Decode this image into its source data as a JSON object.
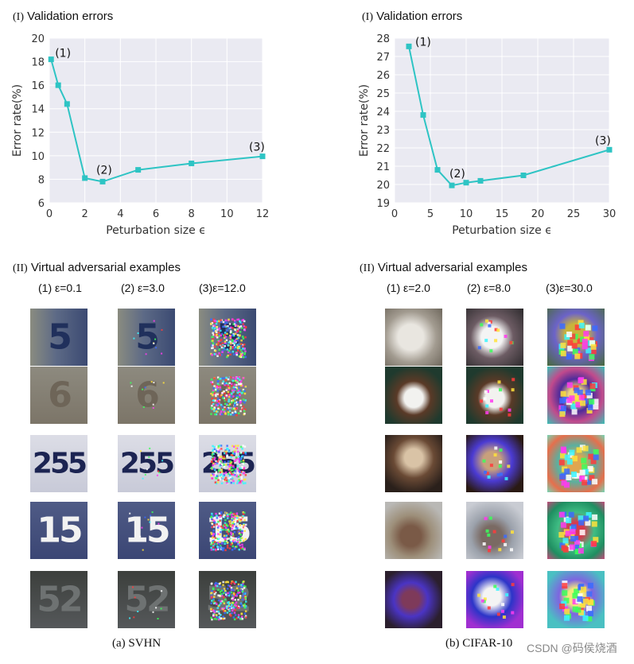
{
  "left": {
    "chart_title_roman": "(I)",
    "chart_title_text": "Validation errors",
    "examples_title_roman": "(II)",
    "examples_title_text": "Virtual adversarial examples",
    "columns": [
      "(1) ε=0.1",
      "(2) ε=3.0",
      "(3)ε=12.0"
    ],
    "caption": "(a) SVHN",
    "row_glyphs": [
      "5",
      "6",
      "255",
      "15",
      "52"
    ]
  },
  "right": {
    "chart_title_roman": "(I)",
    "chart_title_text": "Validation errors",
    "examples_title_roman": "(II)",
    "examples_title_text": "Virtual adversarial examples",
    "columns": [
      "(1) ε=2.0",
      "(2) ε=8.0",
      "(3)ε=30.0"
    ],
    "caption": "(b) CIFAR-10"
  },
  "watermark": "CSDN @码侯烧酒",
  "colors": {
    "line": "#2ec4c4",
    "plot_bg": "#eaeaf2",
    "grid": "#ffffff"
  },
  "chart_data": [
    {
      "type": "line",
      "xlabel": "Peturbation size ϵ",
      "ylabel": "Error rate(%)",
      "xlim": [
        0,
        12
      ],
      "ylim": [
        6,
        20
      ],
      "xticks": [
        0,
        2,
        4,
        6,
        8,
        10,
        12
      ],
      "yticks": [
        6,
        8,
        10,
        12,
        14,
        16,
        18,
        20
      ],
      "grid": true,
      "x": [
        0.1,
        0.5,
        1.0,
        2.0,
        3.0,
        5.0,
        8.0,
        12.0
      ],
      "y": [
        18.2,
        16.0,
        14.4,
        8.1,
        7.8,
        8.8,
        9.35,
        9.95
      ],
      "annotations": [
        {
          "text": "(1)",
          "x": 0.1,
          "y": 18.2
        },
        {
          "text": "(2)",
          "x": 3.0,
          "y": 7.8
        },
        {
          "text": "(3)",
          "x": 12.0,
          "y": 9.95
        }
      ]
    },
    {
      "type": "line",
      "xlabel": "Peturbation size ϵ",
      "ylabel": "Error rate(%)",
      "xlim": [
        0,
        30
      ],
      "ylim": [
        19,
        28
      ],
      "xticks": [
        0,
        5,
        10,
        15,
        20,
        25,
        30
      ],
      "yticks": [
        19,
        20,
        21,
        22,
        23,
        24,
        25,
        26,
        27,
        28
      ],
      "grid": true,
      "x": [
        2.0,
        4.0,
        6.0,
        8.0,
        10.0,
        12.0,
        18.0,
        30.0
      ],
      "y": [
        27.55,
        23.8,
        20.8,
        19.95,
        20.1,
        20.2,
        20.5,
        21.9
      ],
      "annotations": [
        {
          "text": "(1)",
          "x": 2.0,
          "y": 27.55
        },
        {
          "text": "(2)",
          "x": 8.0,
          "y": 19.95
        },
        {
          "text": "(3)",
          "x": 30.0,
          "y": 21.9
        }
      ]
    }
  ]
}
